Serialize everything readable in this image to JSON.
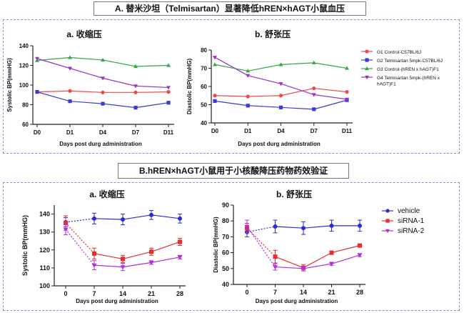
{
  "sectionA": {
    "title": "A. 替米沙坦（Telmisartan）显著降低hREN×hAGT小鼠血压",
    "legend": [
      {
        "name": "G1 Control-C57BL/6J",
        "color": "#f04848",
        "marker": "circle"
      },
      {
        "name": "G2 Telmisartan 5mpk-C57BL/6J",
        "color": "#3a3ad6",
        "marker": "square"
      },
      {
        "name": "G3 Control-(hREN x hAGT)F1",
        "color": "#33a844",
        "marker": "triangle-up"
      },
      {
        "name": "G4 Telmisartan 5mpk-(hREN x hAGT)F1",
        "color": "#9a32c8",
        "marker": "triangle-down"
      }
    ]
  },
  "sectionB": {
    "title": "B.hREN×hAGT小鼠用于小核酸降压药物药效验证",
    "legend": [
      {
        "name": "vehicle",
        "color": "#2b2bd4",
        "marker": "circle"
      },
      {
        "name": "siRNA-1",
        "color": "#ee2a2a",
        "marker": "square"
      },
      {
        "name": "siRNA-2",
        "color": "#b02ee0",
        "marker": "triangle-down"
      }
    ]
  },
  "chart_data": [
    {
      "id": "A_systolic",
      "type": "line",
      "title": "a. 收缩压",
      "xlabel": "Days post durg administration",
      "ylabel": "Systolic BP(mmHG)",
      "categories": [
        "D0",
        "D1",
        "D4",
        "D7",
        "D11"
      ],
      "ylim": [
        60,
        140
      ],
      "yticks": [
        60,
        80,
        100,
        120,
        140
      ],
      "series": [
        {
          "name": "G1 Control-C57BL/6J",
          "values": [
            93,
            94,
            92.5,
            92.5,
            93
          ]
        },
        {
          "name": "G2 Telmisartan 5mpk-C57BL/6J",
          "values": [
            93,
            83.5,
            81,
            77,
            82
          ]
        },
        {
          "name": "G3 Control-(hREN x hAGT)F1",
          "values": [
            125,
            128,
            125.5,
            119,
            120
          ]
        },
        {
          "name": "G4 Telmisartan 5mpk-(hREN x hAGT)F1",
          "values": [
            127,
            117,
            107,
            99,
            97.5
          ]
        }
      ]
    },
    {
      "id": "A_diastolic",
      "type": "line",
      "title": "b. 舒张压",
      "xlabel": "Days post durg administration",
      "ylabel": "Diastolic BP(mmHG)",
      "categories": [
        "D0",
        "D1",
        "D4",
        "D7",
        "D11"
      ],
      "ylim": [
        40,
        80
      ],
      "yticks": [
        40,
        50,
        60,
        70,
        80
      ],
      "series": [
        {
          "name": "G1 Control-C57BL/6J",
          "values": [
            55,
            54.5,
            55,
            59,
            57
          ]
        },
        {
          "name": "G2 Telmisartan 5mpk-C57BL/6J",
          "values": [
            52,
            49.5,
            48.5,
            47.5,
            52.5
          ]
        },
        {
          "name": "G3 Control-(hREN x hAGT)F1",
          "values": [
            72,
            68.5,
            72,
            73,
            70
          ]
        },
        {
          "name": "G4 Telmisartan 5mpk-(hREN x hAGT)F1",
          "values": [
            76,
            66,
            61.5,
            55.5,
            53
          ]
        }
      ]
    },
    {
      "id": "B_systolic",
      "type": "line",
      "title": "a. 收缩压",
      "xlabel": "Days post durg administration",
      "ylabel": "Systolic BP(mmHG)",
      "categories": [
        "0",
        "7",
        "14",
        "21",
        "28"
      ],
      "ylim": [
        100,
        145
      ],
      "yticks": [
        100,
        110,
        120,
        130,
        140
      ],
      "series": [
        {
          "name": "vehicle",
          "values": [
            135.5,
            137.5,
            137,
            139.5,
            137.5
          ],
          "err": [
            2.5,
            3,
            3,
            2.5,
            2.5
          ]
        },
        {
          "name": "siRNA-1",
          "values": [
            135,
            118,
            115,
            119,
            124.5
          ],
          "err": [
            4,
            3,
            2,
            2,
            2
          ]
        },
        {
          "name": "siRNA-2",
          "values": [
            131.5,
            111.5,
            110.5,
            113,
            116
          ],
          "err": [
            3,
            2.5,
            2,
            1,
            1
          ]
        }
      ]
    },
    {
      "id": "B_diastolic",
      "type": "line",
      "title": "b. 舒张压",
      "xlabel": "Days post durg administration",
      "ylabel": "Diastolic BP(mmHG)",
      "categories": [
        "0",
        "7",
        "14",
        "21",
        "28"
      ],
      "ylim": [
        40,
        90
      ],
      "yticks": [
        40,
        50,
        60,
        70,
        80,
        90
      ],
      "series": [
        {
          "name": "vehicle",
          "values": [
            73,
            76.5,
            75.5,
            77,
            77
          ],
          "err": [
            3,
            4,
            4,
            3.5,
            3.5
          ]
        },
        {
          "name": "siRNA-1",
          "values": [
            75.5,
            57.5,
            50.5,
            60,
            64.5
          ],
          "err": [
            3,
            4,
            2,
            1,
            1
          ]
        },
        {
          "name": "siRNA-2",
          "values": [
            76.5,
            51,
            50,
            53,
            58.5
          ],
          "err": [
            4,
            2,
            1.5,
            1,
            1
          ]
        }
      ]
    }
  ]
}
